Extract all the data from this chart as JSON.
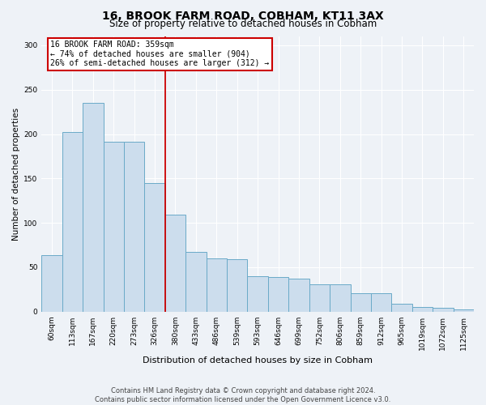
{
  "title": "16, BROOK FARM ROAD, COBHAM, KT11 3AX",
  "subtitle": "Size of property relative to detached houses in Cobham",
  "xlabel": "Distribution of detached houses by size in Cobham",
  "ylabel": "Number of detached properties",
  "bar_color": "#ccdded",
  "bar_edge_color": "#6aaac8",
  "categories": [
    "60sqm",
    "113sqm",
    "167sqm",
    "220sqm",
    "273sqm",
    "326sqm",
    "380sqm",
    "433sqm",
    "486sqm",
    "539sqm",
    "593sqm",
    "646sqm",
    "699sqm",
    "752sqm",
    "806sqm",
    "859sqm",
    "912sqm",
    "965sqm",
    "1019sqm",
    "1072sqm",
    "1125sqm"
  ],
  "bar_values": [
    64,
    202,
    235,
    191,
    191,
    145,
    109,
    67,
    60,
    59,
    40,
    39,
    37,
    31,
    31,
    21,
    21,
    9,
    5,
    4,
    2
  ],
  "vline_index": 6,
  "vline_color": "#cc0000",
  "annotation_text": "16 BROOK FARM ROAD: 359sqm\n← 74% of detached houses are smaller (904)\n26% of semi-detached houses are larger (312) →",
  "annotation_box_color": "#cc0000",
  "footnote": "Contains HM Land Registry data © Crown copyright and database right 2024.\nContains public sector information licensed under the Open Government Licence v3.0.",
  "ylim": [
    0,
    310
  ],
  "yticks": [
    0,
    50,
    100,
    150,
    200,
    250,
    300
  ],
  "background_color": "#eef2f7",
  "plot_bg_color": "#eef2f7",
  "figsize": [
    6.0,
    5.0
  ],
  "dpi": 100,
  "title_fontsize": 10,
  "subtitle_fontsize": 8.5,
  "xlabel_fontsize": 8,
  "ylabel_fontsize": 7.5,
  "tick_fontsize": 6.5,
  "annot_fontsize": 7,
  "footnote_fontsize": 6
}
